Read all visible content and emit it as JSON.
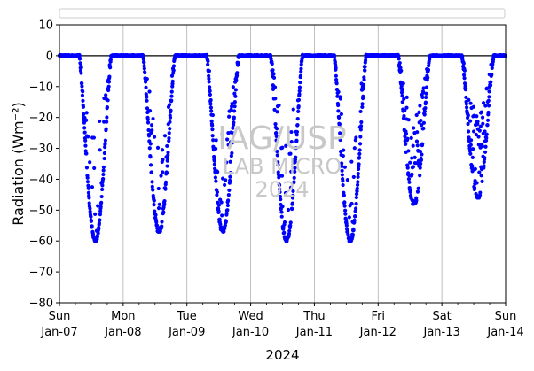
{
  "chart_data": {
    "type": "scatter",
    "ylabel": "Radiation (Wm⁻²)",
    "xlabel": "2024",
    "ylim": [
      -80,
      10
    ],
    "yticks": [
      10,
      0,
      -10,
      -20,
      -30,
      -40,
      -50,
      -60,
      -70,
      -80
    ],
    "xlim": [
      "2024-01-07",
      "2024-01-14"
    ],
    "xticks": [
      {
        "date": "2024-01-07",
        "day": "Sun",
        "label": "Jan-07"
      },
      {
        "date": "2024-01-08",
        "day": "Mon",
        "label": "Jan-08"
      },
      {
        "date": "2024-01-09",
        "day": "Tue",
        "label": "Jan-09"
      },
      {
        "date": "2024-01-10",
        "day": "Wed",
        "label": "Jan-10"
      },
      {
        "date": "2024-01-11",
        "day": "Thu",
        "label": "Jan-11"
      },
      {
        "date": "2024-01-12",
        "day": "Fri",
        "label": "Jan-12"
      },
      {
        "date": "2024-01-13",
        "day": "Sat",
        "label": "Jan-13"
      },
      {
        "date": "2024-01-14",
        "day": "Sun",
        "label": "Jan-14"
      }
    ],
    "grid": "vertical",
    "legend": "top, empty",
    "reference_line": 0,
    "marker_color": "#0000ff",
    "daily_minimum": [
      {
        "date": "2024-01-07",
        "min": -60
      },
      {
        "date": "2024-01-08",
        "min": -57
      },
      {
        "date": "2024-01-09",
        "min": -57
      },
      {
        "date": "2024-01-10",
        "min": -60
      },
      {
        "date": "2024-01-11",
        "min": -60
      },
      {
        "date": "2024-01-12",
        "min": -48
      },
      {
        "date": "2024-01-13",
        "min": -46
      }
    ]
  },
  "watermark": {
    "line1": "IAG/USP",
    "line2": "LAB MICRO",
    "line3": "2024"
  }
}
